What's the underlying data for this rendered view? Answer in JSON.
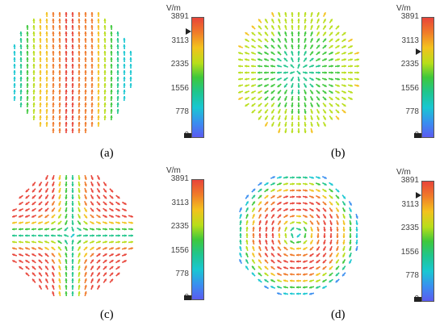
{
  "panels": [
    {
      "id": "a",
      "caption": "(a)",
      "pattern": "vertical"
    },
    {
      "id": "b",
      "caption": "(b)",
      "pattern": "radial"
    },
    {
      "id": "c",
      "caption": "(c)",
      "pattern": "quad"
    },
    {
      "id": "d",
      "caption": "(d)",
      "pattern": "vortex"
    }
  ],
  "colorbar": {
    "unit": "V/m",
    "ticks": [
      "3891",
      "3113",
      "2335",
      "1556",
      "778",
      "0"
    ]
  },
  "colors": {
    "scale": [
      "#5b5bf0",
      "#3a8ef0",
      "#19c7d1",
      "#20c68c",
      "#3ec83c",
      "#b8de1a",
      "#f3c21e",
      "#f07a2a",
      "#e8453a"
    ]
  }
}
